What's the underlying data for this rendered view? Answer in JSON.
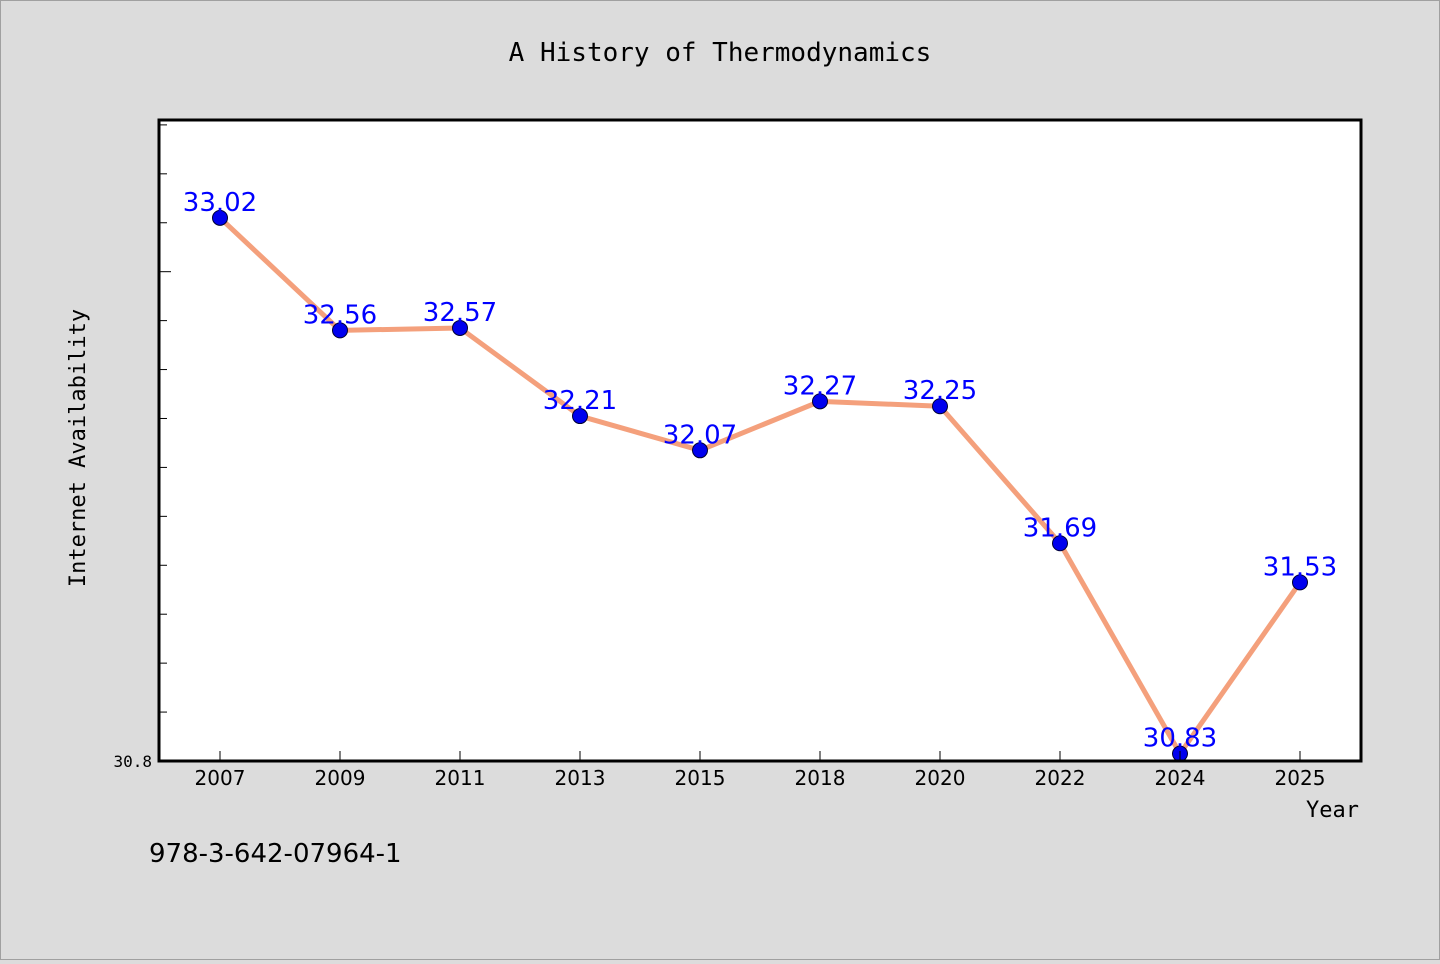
{
  "chart_data": {
    "type": "line",
    "title": "A History of Thermodynamics",
    "xlabel": "Year",
    "ylabel": "Internet Availability",
    "categories": [
      "2007",
      "2009",
      "2011",
      "2013",
      "2015",
      "2018",
      "2020",
      "2022",
      "2024",
      "2025"
    ],
    "series": [
      {
        "values": [
          33.02,
          32.56,
          32.57,
          32.21,
          32.07,
          32.27,
          32.25,
          31.69,
          30.83,
          31.53
        ],
        "data_labels": [
          "33.02",
          "32.56",
          "32.57",
          "32.21",
          "32.07",
          "32.27",
          "32.25",
          "31.69",
          "30.83",
          "31.53"
        ]
      }
    ],
    "ylim": [
      30.8,
      33.42
    ],
    "y_tick_labels": [
      "30.8"
    ],
    "grid": false,
    "legend": "none",
    "colors": {
      "line": "#f4a07c",
      "marker": "#0000ee",
      "data_label": "#0000ff",
      "plot_background": "#ffffff",
      "figure_background": "#dcdcdc"
    }
  },
  "footer": {
    "isbn": "978-3-642-07964-1"
  }
}
